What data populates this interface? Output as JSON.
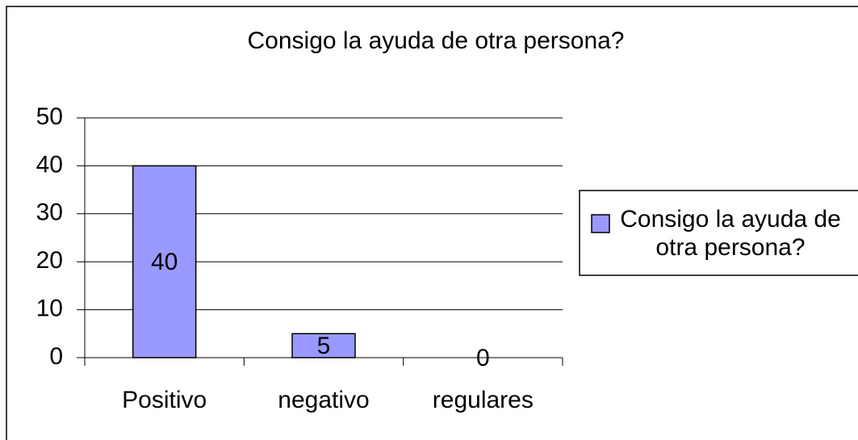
{
  "chart_data": {
    "type": "bar",
    "title": "Consigo la ayuda de otra persona?",
    "categories": [
      "Positivo",
      "negativo",
      "regulares"
    ],
    "series": [
      {
        "name": "Consigo la ayuda de otra persona?",
        "color": "#9999ff",
        "values": [
          40,
          5,
          0
        ]
      }
    ],
    "ylim": [
      0,
      50
    ],
    "yticks": [
      0,
      10,
      20,
      30,
      40,
      50
    ],
    "grid": true,
    "legend": "right",
    "data_labels": true
  }
}
